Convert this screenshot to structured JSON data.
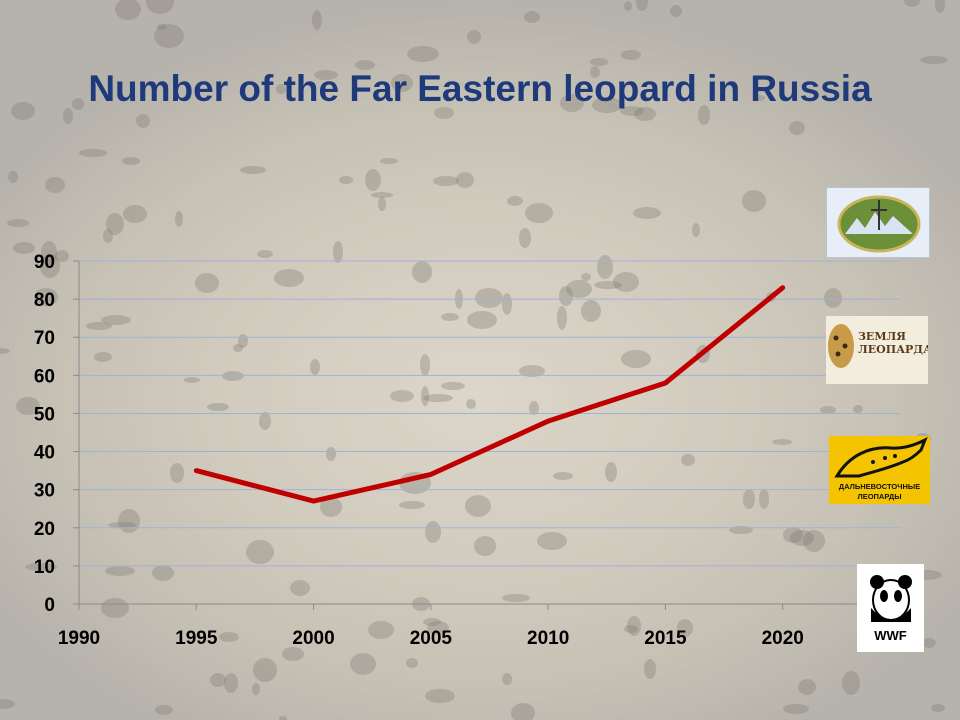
{
  "colors": {
    "title": "#1f3a7a",
    "line": "#c00000",
    "gridline": "#9db3d6",
    "axis": "#8a8a8a"
  },
  "chart_data": {
    "type": "line",
    "title": "Number of the Far Eastern leopard in Russia",
    "x": [
      1995,
      2000,
      2005,
      2010,
      2015,
      2020
    ],
    "y": [
      35,
      27,
      34,
      48,
      58,
      83
    ],
    "xticks": [
      "1990",
      "1995",
      "2000",
      "2005",
      "2010",
      "2015",
      "2020"
    ],
    "yticks": [
      "0",
      "10",
      "20",
      "30",
      "40",
      "50",
      "60",
      "70",
      "80",
      "90"
    ],
    "xlim": [
      1990,
      2025
    ],
    "ylim": [
      0,
      90
    ],
    "grid": true,
    "legend": "none"
  },
  "logos": {
    "zemlya_line1": "ЗЕМЛЯ",
    "zemlya_line2": "ЛЕОПАРДА",
    "far_east_line1": "ДАЛЬНЕВОСТОЧНЫЕ",
    "far_east_line2": "ЛЕОПАРДЫ",
    "wwf": "WWF",
    "icons": [
      "park-emblem-icon",
      "leopard-land-logo-icon",
      "far-eastern-leopards-logo-icon",
      "wwf-panda-icon"
    ]
  }
}
